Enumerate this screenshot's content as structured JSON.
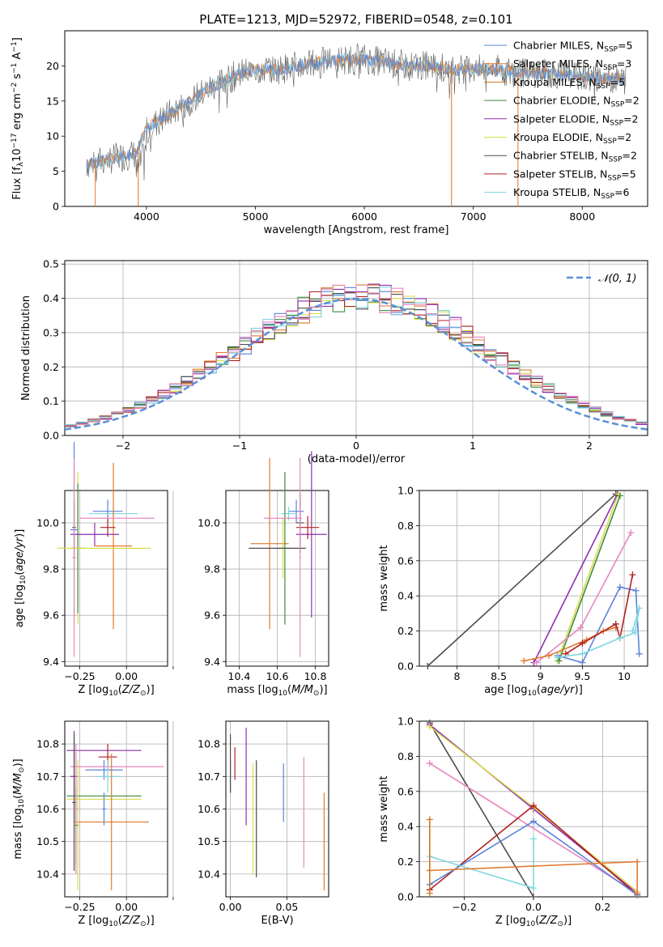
{
  "figure_title": "PLATE=1213, MJD=52972, FIBERID=0548, z=0.101",
  "colors": {
    "Chabrier MILES": "#5b84d6",
    "Salpeter MILES": "#e07a2e",
    "Kroupa MILES": "#d2781e",
    "Chabrier ELODIE": "#3f8a3f",
    "Salpeter ELODIE": "#8e2fb0",
    "Kroupa ELODIE": "#d9de4a",
    "Chabrier STELIB": "#4d4d4d",
    "Salpeter STELIB": "#b22222",
    "Kroupa STELIB": "#7fd6e0",
    "Pink": "#e887c0",
    "Normal": "#5b8fd8"
  },
  "chart_data": [
    {
      "id": "spectrum",
      "type": "line",
      "title": "PLATE=1213, MJD=52972, FIBERID=0548, z=0.101",
      "xlabel": "wavelength [Angstrom, rest frame]",
      "ylabel": "Flux [f_λ 10^-17 erg cm^-2 s^-1 A^-1]",
      "xlim": [
        3250,
        8600
      ],
      "ylim": [
        0,
        25
      ],
      "xticks": [
        "4000",
        "5000",
        "6000",
        "7000",
        "8000"
      ],
      "yticks": [
        "0",
        "5",
        "10",
        "15",
        "20"
      ],
      "legend_position": "right",
      "legend": [
        {
          "label": "Chabrier MILES, N",
          "sub": "SSP",
          "tail": "=5",
          "color": "Chabrier MILES"
        },
        {
          "label": "Salpeter MILES, N",
          "sub": "SSP",
          "tail": "=3",
          "color": "Salpeter MILES"
        },
        {
          "label": "Kroupa MILES, N",
          "sub": "SSP",
          "tail": "=5",
          "color": "Kroupa MILES"
        },
        {
          "label": "Chabrier ELODIE, N",
          "sub": "SSP",
          "tail": "=2",
          "color": "Chabrier ELODIE"
        },
        {
          "label": "Salpeter ELODIE, N",
          "sub": "SSP",
          "tail": "=2",
          "color": "Salpeter ELODIE"
        },
        {
          "label": "Kroupa ELODIE, N",
          "sub": "SSP",
          "tail": "=2",
          "color": "Kroupa ELODIE"
        },
        {
          "label": "Chabrier STELIB, N",
          "sub": "SSP",
          "tail": "=2",
          "color": "Chabrier STELIB"
        },
        {
          "label": "Salpeter STELIB, N",
          "sub": "SSP",
          "tail": "=5",
          "color": "Salpeter STELIB"
        },
        {
          "label": "Kroupa STELIB, N",
          "sub": "SSP",
          "tail": "=6",
          "color": "Kroupa STELIB"
        }
      ],
      "continuum": [
        [
          3450,
          6
        ],
        [
          3600,
          6.5
        ],
        [
          3750,
          7
        ],
        [
          3900,
          7.5
        ],
        [
          4000,
          11
        ],
        [
          4200,
          13
        ],
        [
          4400,
          15
        ],
        [
          4600,
          17
        ],
        [
          4800,
          18.5
        ],
        [
          5000,
          19.5
        ],
        [
          5200,
          19.5
        ],
        [
          5400,
          20
        ],
        [
          5600,
          20.5
        ],
        [
          5800,
          21
        ],
        [
          6000,
          21
        ],
        [
          6200,
          20.5
        ],
        [
          6400,
          20
        ],
        [
          6600,
          20
        ],
        [
          6800,
          19.5
        ],
        [
          7000,
          19.5
        ],
        [
          7200,
          19.5
        ],
        [
          7400,
          19
        ],
        [
          7600,
          19
        ],
        [
          7800,
          18.8
        ],
        [
          8000,
          18.5
        ],
        [
          8200,
          18.3
        ],
        [
          8400,
          18
        ]
      ],
      "dips": [
        {
          "x": 3530,
          "color": "Salpeter MILES"
        },
        {
          "x": 3925,
          "color": "Kroupa MILES"
        },
        {
          "x": 6800,
          "color": "Kroupa MILES"
        },
        {
          "x": 7410,
          "color": "Salpeter MILES"
        }
      ]
    },
    {
      "id": "residuals",
      "type": "histogram",
      "xlabel": "(data-model)/error",
      "ylabel": "Normed distribution",
      "xlim": [
        -2.5,
        2.5
      ],
      "ylim": [
        0,
        0.51
      ],
      "xticks": [
        -2,
        -1,
        0,
        1,
        2
      ],
      "yticks": [
        0,
        0.1,
        0.2,
        0.3,
        0.4,
        0.5
      ],
      "legend_position": "top-right",
      "legend_label": "𝒩(0, 1)",
      "bin_width": 0.1,
      "series_colors": [
        "Chabrier MILES",
        "Salpeter MILES",
        "Chabrier ELODIE",
        "Salpeter ELODIE",
        "Kroupa ELODIE",
        "Chabrier STELIB",
        "Salpeter STELIB",
        "Kroupa STELIB",
        "Pink"
      ]
    },
    {
      "id": "age_vs_Z",
      "type": "errorbar",
      "xlabel": "Z [log10(Z/Z⊙)]",
      "ylabel": "age [log10(age/yr)]",
      "xlim": [
        -0.33,
        0.22
      ],
      "ylim": [
        9.38,
        10.14
      ],
      "xticks": [
        -0.25,
        0,
        0.25
      ],
      "xticklabels": [
        "−0.25",
        "0.00",
        ""
      ],
      "yticks": [
        9.4,
        9.6,
        9.8,
        10.0
      ],
      "points": [
        {
          "x": -0.1,
          "y": 10.05,
          "xerr": 0.08,
          "yerr": 0.05,
          "color": "Chabrier MILES"
        },
        {
          "x": -0.07,
          "y": 10.04,
          "xerr": 0.13,
          "yerr": 0.03,
          "color": "Kroupa STELIB"
        },
        {
          "x": -0.07,
          "y": 9.9,
          "xerr": 0.1,
          "yerr": 0.36,
          "color": "Salpeter MILES"
        },
        {
          "x": -0.28,
          "y": 9.97,
          "xerr": 0.02,
          "yerr": 0.38,
          "color": "Chabrier MILES"
        },
        {
          "x": -0.26,
          "y": 9.89,
          "xerr": 0.03,
          "yerr": 0.33,
          "color": "Kroupa ELODIE"
        },
        {
          "x": -0.26,
          "y": 9.89,
          "xerr": 0.04,
          "yerr": 0.28,
          "color": "Chabrier ELODIE"
        },
        {
          "x": -0.17,
          "y": 9.95,
          "xerr": 0.13,
          "yerr": 0.05,
          "color": "Salpeter ELODIE"
        },
        {
          "x": -0.12,
          "y": 9.89,
          "xerr": 0.25,
          "yerr": 0.0,
          "color": "Kroupa ELODIE"
        },
        {
          "x": -0.28,
          "y": 9.98,
          "xerr": 0.01,
          "yerr": 0.12,
          "color": "Chabrier STELIB"
        },
        {
          "x": -0.1,
          "y": 9.98,
          "xerr": 0.04,
          "yerr": 0.04,
          "color": "Salpeter STELIB"
        },
        {
          "x": -0.05,
          "y": 10.02,
          "xerr": 0.2,
          "yerr": 0.0,
          "color": "Pink"
        },
        {
          "x": -0.28,
          "y": 9.85,
          "xerr": 0.01,
          "yerr": 0.43,
          "color": "Pink"
        }
      ]
    },
    {
      "id": "age_vs_mass",
      "type": "errorbar",
      "xlabel": "mass [log10(M/M⊙)]",
      "ylabel": "",
      "xlim": [
        10.33,
        10.87
      ],
      "ylim": [
        9.38,
        10.14
      ],
      "xticks": [
        10.4,
        10.6,
        10.8
      ],
      "yticks": [
        9.4,
        9.6,
        9.8,
        10.0
      ],
      "points": [
        {
          "x": 10.7,
          "y": 10.05,
          "xerr": 0.04,
          "yerr": 0.05,
          "color": "Chabrier MILES"
        },
        {
          "x": 10.66,
          "y": 10.04,
          "xerr": 0.04,
          "yerr": 0.03,
          "color": "Kroupa STELIB"
        },
        {
          "x": 10.56,
          "y": 9.91,
          "xerr": 0.1,
          "yerr": 0.37,
          "color": "Salpeter MILES"
        },
        {
          "x": 10.64,
          "y": 9.89,
          "xerr": 0.03,
          "yerr": 0.33,
          "color": "Chabrier ELODIE"
        },
        {
          "x": 10.63,
          "y": 9.89,
          "xerr": 0.03,
          "yerr": 0.13,
          "color": "Kroupa ELODIE"
        },
        {
          "x": 10.78,
          "y": 9.95,
          "xerr": 0.08,
          "yerr": 0.36,
          "color": "Salpeter ELODIE"
        },
        {
          "x": 10.6,
          "y": 9.89,
          "xerr": 0.15,
          "yerr": 0.0,
          "color": "Chabrier STELIB"
        },
        {
          "x": 10.76,
          "y": 9.98,
          "xerr": 0.06,
          "yerr": 0.05,
          "color": "Salpeter STELIB"
        },
        {
          "x": 10.72,
          "y": 10.0,
          "xerr": 0.02,
          "yerr": 0.13,
          "color": "Chabrier STELIB"
        },
        {
          "x": 10.63,
          "y": 10.02,
          "xerr": 0.1,
          "yerr": 0.0,
          "color": "Pink"
        },
        {
          "x": 10.72,
          "y": 9.85,
          "xerr": 0.005,
          "yerr": 0.43,
          "color": "Pink"
        }
      ]
    },
    {
      "id": "mass_weight_vs_age",
      "type": "line",
      "xlabel": "age [log10(age/yr)]",
      "ylabel": "mass weight",
      "xlim": [
        7.55,
        10.28
      ],
      "ylim": [
        0,
        1.0
      ],
      "xticks": [
        8.0,
        8.5,
        9.0,
        9.5,
        10.0
      ],
      "yticks": [
        0,
        0.2,
        0.4,
        0.6,
        0.8,
        1.0
      ],
      "series": [
        {
          "color": "Chabrier STELIB",
          "points": [
            [
              7.65,
              0.0
            ],
            [
              9.9,
              0.98
            ]
          ]
        },
        {
          "color": "Salpeter ELODIE",
          "points": [
            [
              8.92,
              0.02
            ],
            [
              9.92,
              0.98
            ]
          ]
        },
        {
          "color": "Kroupa ELODIE",
          "points": [
            [
              9.2,
              0.03
            ],
            [
              9.93,
              0.98
            ]
          ]
        },
        {
          "color": "Chabrier ELODIE",
          "points": [
            [
              9.22,
              0.03
            ],
            [
              9.95,
              0.97
            ]
          ]
        },
        {
          "color": "Pink",
          "points": [
            [
              8.95,
              0.02
            ],
            [
              9.48,
              0.22
            ],
            [
              10.08,
              0.76
            ]
          ]
        },
        {
          "color": "Chabrier MILES",
          "points": [
            [
              9.2,
              0.06
            ],
            [
              9.5,
              0.02
            ],
            [
              9.95,
              0.45
            ],
            [
              10.14,
              0.43
            ],
            [
              10.18,
              0.07
            ]
          ]
        },
        {
          "color": "Salpeter MILES",
          "points": [
            [
              8.8,
              0.03
            ],
            [
              9.1,
              0.06
            ],
            [
              9.55,
              0.15
            ],
            [
              9.75,
              0.2
            ],
            [
              9.9,
              0.22
            ]
          ]
        },
        {
          "color": "Salpeter STELIB",
          "points": [
            [
              9.3,
              0.07
            ],
            [
              9.5,
              0.13
            ],
            [
              9.9,
              0.24
            ],
            [
              9.95,
              0.16
            ],
            [
              10.1,
              0.52
            ]
          ]
        },
        {
          "color": "Kroupa STELIB",
          "points": [
            [
              9.2,
              0.05
            ],
            [
              9.5,
              0.07
            ],
            [
              9.95,
              0.16
            ],
            [
              10.13,
              0.19
            ],
            [
              10.18,
              0.33
            ],
            [
              10.1,
              0.2
            ]
          ]
        }
      ]
    },
    {
      "id": "mass_vs_Z",
      "type": "errorbar",
      "xlabel": "Z [log10(Z/Z⊙)]",
      "ylabel": "mass [log10(M/M⊙)]",
      "xlim": [
        -0.33,
        0.22
      ],
      "ylim": [
        10.33,
        10.87
      ],
      "xticks": [
        -0.25,
        0,
        0.25
      ],
      "xticklabels": [
        "−0.25",
        "0.00",
        ""
      ],
      "yticks": [
        10.4,
        10.5,
        10.6,
        10.7,
        10.8
      ],
      "points": [
        {
          "x": -0.28,
          "y": 10.7,
          "xerr": 0.02,
          "yerr": 0.14,
          "color": "Salpeter ELODIE"
        },
        {
          "x": -0.12,
          "y": 10.78,
          "xerr": 0.2,
          "yerr": 0.0,
          "color": "Salpeter ELODIE"
        },
        {
          "x": -0.1,
          "y": 10.76,
          "xerr": 0.05,
          "yerr": 0.04,
          "color": "Salpeter STELIB"
        },
        {
          "x": -0.12,
          "y": 10.72,
          "xerr": 0.1,
          "yerr": 0.03,
          "color": "Chabrier MILES"
        },
        {
          "x": -0.05,
          "y": 10.73,
          "xerr": 0.25,
          "yerr": 0.0,
          "color": "Pink"
        },
        {
          "x": -0.1,
          "y": 10.7,
          "xerr": 0.07,
          "yerr": 0.05,
          "color": "Kroupa STELIB"
        },
        {
          "x": -0.12,
          "y": 10.64,
          "xerr": 0.2,
          "yerr": 0.0,
          "color": "Chabrier ELODIE"
        },
        {
          "x": -0.12,
          "y": 10.63,
          "xerr": 0.2,
          "yerr": 0.0,
          "color": "Kroupa ELODIE"
        },
        {
          "x": -0.08,
          "y": 10.56,
          "xerr": 0.2,
          "yerr": 0.21,
          "color": "Salpeter MILES"
        },
        {
          "x": -0.28,
          "y": 10.62,
          "xerr": 0.01,
          "yerr": 0.21,
          "color": "Chabrier STELIB"
        },
        {
          "x": -0.26,
          "y": 10.55,
          "xerr": 0.01,
          "yerr": 0.2,
          "color": "Kroupa ELODIE"
        },
        {
          "x": -0.27,
          "y": 10.55,
          "xerr": 0.01,
          "yerr": 0.12,
          "color": "Chabrier ELODIE"
        },
        {
          "x": -0.27,
          "y": 10.6,
          "xerr": 0.01,
          "yerr": 0.2,
          "color": "Pink"
        },
        {
          "x": -0.12,
          "y": 10.6,
          "xerr": 0.01,
          "yerr": 0.05,
          "color": "Chabrier MILES"
        }
      ]
    },
    {
      "id": "mass_vs_EBV",
      "type": "errorbar",
      "xlabel": "E(B-V)",
      "ylabel": "",
      "xlim": [
        -0.004,
        0.087
      ],
      "ylim": [
        10.33,
        10.87
      ],
      "xticks": [
        0.0,
        0.05
      ],
      "xticklabels": [
        "0.00",
        "0.05"
      ],
      "yticks": [
        10.4,
        10.5,
        10.6,
        10.7,
        10.8
      ],
      "points": [
        {
          "x": 0.0,
          "y": 10.7,
          "xerr": 0,
          "yerr": 0.05,
          "color": "Chabrier MILES"
        },
        {
          "x": 0.0,
          "y": 10.74,
          "xerr": 0,
          "yerr": 0.09,
          "color": "Chabrier STELIB"
        },
        {
          "x": 0.004,
          "y": 10.74,
          "xerr": 0,
          "yerr": 0.05,
          "color": "Salpeter STELIB"
        },
        {
          "x": 0.014,
          "y": 10.7,
          "xerr": 0,
          "yerr": 0.15,
          "color": "Salpeter ELODIE"
        },
        {
          "x": 0.02,
          "y": 10.57,
          "xerr": 0,
          "yerr": 0.17,
          "color": "Kroupa ELODIE"
        },
        {
          "x": 0.023,
          "y": 10.57,
          "xerr": 0,
          "yerr": 0.18,
          "color": "Chabrier STELIB"
        },
        {
          "x": 0.047,
          "y": 10.65,
          "xerr": 0,
          "yerr": 0.09,
          "color": "Chabrier MILES"
        },
        {
          "x": 0.065,
          "y": 10.59,
          "xerr": 0,
          "yerr": 0.17,
          "color": "Pink"
        },
        {
          "x": 0.083,
          "y": 10.5,
          "xerr": 0,
          "yerr": 0.15,
          "color": "Salpeter MILES"
        }
      ]
    },
    {
      "id": "mass_weight_vs_Z",
      "type": "line",
      "xlabel": "Z [log10(Z/Z⊙)]",
      "ylabel": "mass weight",
      "xlim": [
        -0.33,
        0.33
      ],
      "ylim": [
        0,
        1.0
      ],
      "xticks": [
        -0.2,
        0.0,
        0.2
      ],
      "xticklabels": [
        "−0.2",
        "0.0",
        "0.2"
      ],
      "yticks": [
        0,
        0.2,
        0.4,
        0.6,
        0.8,
        1.0
      ],
      "series": [
        {
          "color": "Chabrier STELIB",
          "points": [
            [
              -0.3,
              0.99
            ],
            [
              0.0,
              0.0
            ]
          ]
        },
        {
          "color": "Salpeter ELODIE",
          "points": [
            [
              -0.3,
              0.98
            ],
            [
              0.0,
              0.5
            ],
            [
              0.3,
              0.02
            ]
          ]
        },
        {
          "color": "Kroupa ELODIE",
          "points": [
            [
              -0.3,
              0.97
            ],
            [
              0.0,
              0.51
            ],
            [
              0.3,
              0.03
            ]
          ]
        },
        {
          "color": "Pink",
          "points": [
            [
              -0.3,
              0.76
            ],
            [
              0.3,
              0.02
            ]
          ]
        },
        {
          "color": "Salpeter STELIB",
          "points": [
            [
              -0.3,
              0.04
            ],
            [
              0.0,
              0.52
            ],
            [
              0.3,
              0.01
            ]
          ]
        },
        {
          "color": "Chabrier MILES",
          "points": [
            [
              -0.3,
              0.07
            ],
            [
              0.0,
              0.43
            ],
            [
              0.3,
              0.01
            ]
          ]
        },
        {
          "color": "Kroupa STELIB",
          "points": [
            [
              -0.3,
              0.23
            ],
            [
              0.0,
              0.05
            ],
            [
              0.0,
              0.33
            ]
          ]
        },
        {
          "color": "Salpeter MILES",
          "points": [
            [
              -0.3,
              0.15
            ],
            [
              0.3,
              0.2
            ],
            [
              0.3,
              0.02
            ]
          ]
        },
        {
          "color": "Kroupa MILES",
          "points": [
            [
              -0.3,
              0.44
            ],
            [
              -0.3,
              0.02
            ]
          ]
        }
      ]
    }
  ]
}
